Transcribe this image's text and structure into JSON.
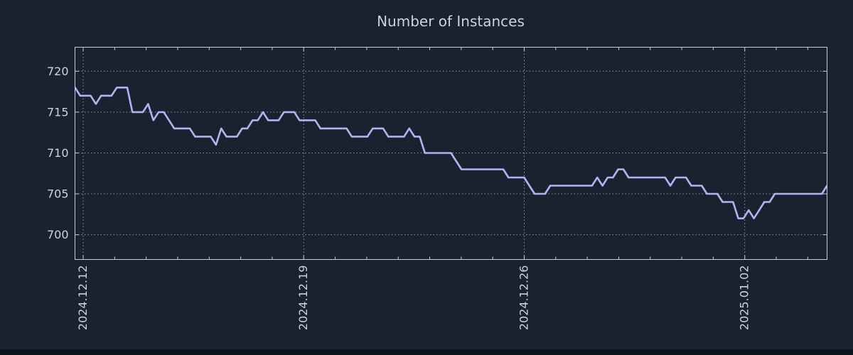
{
  "title": "Number of Instances",
  "colors": {
    "background": "#1a2230",
    "footer_strip": "#0e141d",
    "line": "#b1b4f0",
    "grid": "#8d98a6",
    "border": "#c6ccd5",
    "text": "#cdd2da"
  },
  "chart_data": {
    "type": "line",
    "title": "Number of Instances",
    "xlabel": "",
    "ylabel": "",
    "x_tick_labels": [
      "2024.12.12",
      "2024.12.19",
      "2024.12.26",
      "2025.01.02"
    ],
    "x_tick_days": [
      0,
      7,
      14,
      21
    ],
    "x_minor_tick_interval_days": 1,
    "x_minor_tick_day_range": [
      0,
      23
    ],
    "x_range_days": [
      -0.26,
      23.62
    ],
    "y_ticks": [
      700,
      705,
      710,
      715,
      720
    ],
    "ylim": [
      697,
      723
    ],
    "grid": true,
    "legend": false,
    "sampling": "one point per ~4 hours, read from plot",
    "series": [
      {
        "name": "instances",
        "values": [
          718,
          717,
          717,
          717,
          716,
          717,
          717,
          717,
          718,
          718,
          718,
          715,
          715,
          715,
          716,
          714,
          715,
          715,
          714,
          713,
          713,
          713,
          713,
          712,
          712,
          712,
          712,
          711,
          713,
          712,
          712,
          712,
          713,
          713,
          714,
          714,
          715,
          714,
          714,
          714,
          715,
          715,
          715,
          714,
          714,
          714,
          714,
          713,
          713,
          713,
          713,
          713,
          713,
          712,
          712,
          712,
          712,
          713,
          713,
          713,
          712,
          712,
          712,
          712,
          713,
          712,
          712,
          710,
          710,
          710,
          710,
          710,
          710,
          709,
          708,
          708,
          708,
          708,
          708,
          708,
          708,
          708,
          708,
          707,
          707,
          707,
          707,
          706,
          705,
          705,
          705,
          706,
          706,
          706,
          706,
          706,
          706,
          706,
          706,
          706,
          707,
          706,
          707,
          707,
          708,
          708,
          707,
          707,
          707,
          707,
          707,
          707,
          707,
          707,
          706,
          707,
          707,
          707,
          706,
          706,
          706,
          705,
          705,
          705,
          704,
          704,
          704,
          702,
          702,
          703,
          702,
          703,
          704,
          704,
          705,
          705,
          705,
          705,
          705,
          705,
          705,
          705,
          705,
          705,
          706
        ]
      }
    ]
  }
}
